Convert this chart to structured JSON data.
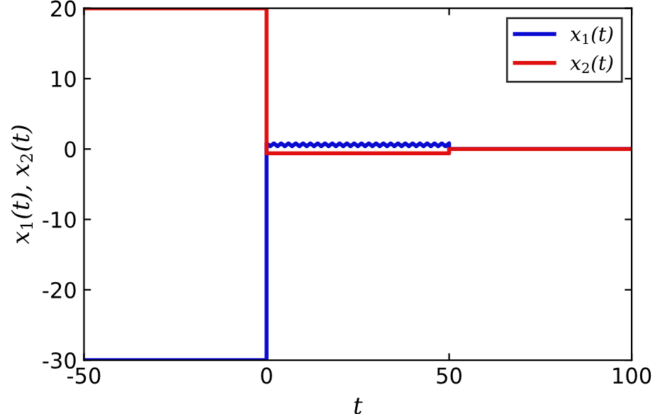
{
  "chart_data": {
    "type": "line",
    "xlabel": "t",
    "ylabel": "x$_{1}$(t), x$_{2}$(t)",
    "xlim": [
      -50,
      100
    ],
    "ylim": [
      -30,
      20
    ],
    "xticks": [
      -50,
      0,
      50,
      100
    ],
    "yticks": [
      -30,
      -20,
      -10,
      0,
      10,
      20
    ],
    "grid": false,
    "legend": "top right",
    "line_style": "solid",
    "marker": "none",
    "series": [
      {
        "name": "x$_{1}$(t)",
        "color": "#0a0ad0",
        "x": [
          -50,
          0,
          0,
          1,
          2,
          3,
          4,
          5,
          6,
          7,
          8,
          9,
          10,
          11,
          12,
          13,
          14,
          15,
          16,
          17,
          18,
          19,
          20,
          21,
          22,
          23,
          24,
          25,
          26,
          27,
          28,
          29,
          30,
          31,
          32,
          33,
          34,
          35,
          36,
          37,
          38,
          39,
          40,
          41,
          42,
          43,
          44,
          45,
          46,
          47,
          48,
          49,
          50,
          50,
          100
        ],
        "values": [
          -30,
          -30,
          0.8,
          0.4,
          0.8,
          0.4,
          0.8,
          0.4,
          0.8,
          0.4,
          0.8,
          0.4,
          0.8,
          0.4,
          0.8,
          0.4,
          0.8,
          0.4,
          0.8,
          0.4,
          0.8,
          0.4,
          0.8,
          0.4,
          0.8,
          0.4,
          0.8,
          0.4,
          0.8,
          0.4,
          0.8,
          0.4,
          0.8,
          0.4,
          0.8,
          0.4,
          0.8,
          0.4,
          0.8,
          0.4,
          0.8,
          0.4,
          0.8,
          0.4,
          0.8,
          0.4,
          0.8,
          0.4,
          0.8,
          0.4,
          0.8,
          0.4,
          0.8,
          0,
          0
        ]
      },
      {
        "name": "x$_{2}$(t)",
        "color": "#e01010",
        "x": [
          -50,
          0,
          0,
          50,
          50,
          100
        ],
        "values": [
          20,
          20,
          -0.6,
          -0.6,
          0,
          0
        ]
      }
    ]
  }
}
